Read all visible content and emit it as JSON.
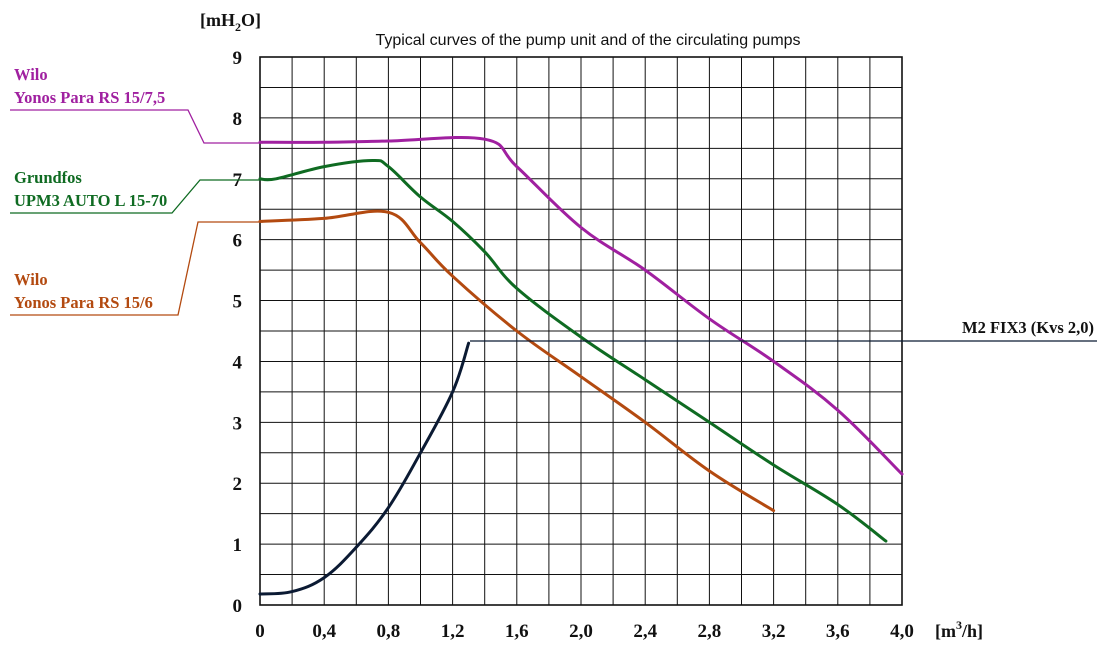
{
  "chart_data": {
    "type": "line",
    "title": "Typical curves of the pump unit and of the circulating pumps",
    "xlabel": "[m3/h]",
    "ylabel": "[mH2O]",
    "xlim": [
      0,
      4.0
    ],
    "ylim": [
      0,
      9
    ],
    "grid": true,
    "x_tick_labels": [
      "0",
      "0,4",
      "0,8",
      "1,2",
      "1,6",
      "2,0",
      "2,4",
      "2,8",
      "3,2",
      "3,6",
      "4,0"
    ],
    "y_tick_labels": [
      "0",
      "1",
      "2",
      "3",
      "4",
      "5",
      "6",
      "7",
      "8",
      "9"
    ],
    "series": [
      {
        "name": "Wilo Yonos Para RS 15/7,5",
        "name_lines": [
          "Wilo",
          "Yonos Para RS 15/7,5"
        ],
        "color": "#a020a0",
        "points": [
          [
            0.0,
            7.6
          ],
          [
            0.4,
            7.6
          ],
          [
            0.8,
            7.62
          ],
          [
            1.4,
            7.65
          ],
          [
            1.6,
            7.2
          ],
          [
            2.0,
            6.2
          ],
          [
            2.4,
            5.5
          ],
          [
            2.8,
            4.7
          ],
          [
            3.2,
            4.0
          ],
          [
            3.6,
            3.2
          ],
          [
            4.0,
            2.15
          ]
        ]
      },
      {
        "name": "Grundfos UPM3 AUTO L 15-70",
        "name_lines": [
          "Grundfos",
          "UPM3 AUTO L 15-70"
        ],
        "color": "#0f6b22",
        "points": [
          [
            0.0,
            7.0
          ],
          [
            0.1,
            7.0
          ],
          [
            0.4,
            7.2
          ],
          [
            0.7,
            7.3
          ],
          [
            0.8,
            7.2
          ],
          [
            1.0,
            6.7
          ],
          [
            1.2,
            6.3
          ],
          [
            1.4,
            5.8
          ],
          [
            1.6,
            5.2
          ],
          [
            2.0,
            4.4
          ],
          [
            2.4,
            3.7
          ],
          [
            2.8,
            3.0
          ],
          [
            3.2,
            2.3
          ],
          [
            3.6,
            1.65
          ],
          [
            3.9,
            1.05
          ]
        ]
      },
      {
        "name": "Wilo Yonos Para RS 15/6",
        "name_lines": [
          "Wilo",
          "Yonos Para RS 15/6"
        ],
        "color": "#b34a10",
        "points": [
          [
            0.0,
            6.3
          ],
          [
            0.4,
            6.35
          ],
          [
            0.8,
            6.45
          ],
          [
            1.0,
            5.95
          ],
          [
            1.2,
            5.4
          ],
          [
            1.6,
            4.5
          ],
          [
            2.0,
            3.75
          ],
          [
            2.4,
            3.0
          ],
          [
            2.8,
            2.2
          ],
          [
            3.2,
            1.55
          ]
        ]
      },
      {
        "name": "M2 FIX3 (Kvs 2,0)",
        "name_lines": [
          "M2 FIX3 (Kvs 2,0)"
        ],
        "color": "#0b1a33",
        "points": [
          [
            0.0,
            0.18
          ],
          [
            0.2,
            0.22
          ],
          [
            0.4,
            0.45
          ],
          [
            0.6,
            0.95
          ],
          [
            0.8,
            1.6
          ],
          [
            1.0,
            2.5
          ],
          [
            1.2,
            3.5
          ],
          [
            1.3,
            4.3
          ]
        ]
      }
    ]
  }
}
